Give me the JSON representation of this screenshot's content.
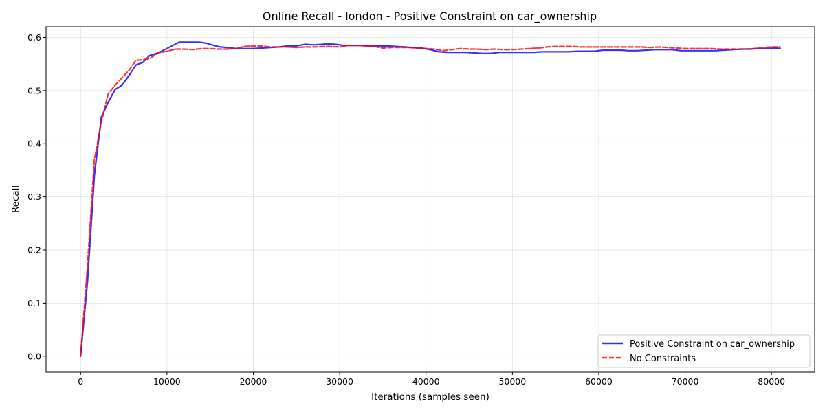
{
  "chart_data": {
    "type": "line",
    "title": "Online Recall - london - Positive Constraint on car_ownership",
    "xlabel": "Iterations (samples seen)",
    "ylabel": "Recall",
    "xlim": [
      -4000,
      85000
    ],
    "ylim": [
      -0.03,
      0.62
    ],
    "xticks": [
      0,
      10000,
      20000,
      30000,
      40000,
      50000,
      60000,
      70000,
      80000
    ],
    "yticks": [
      0.0,
      0.1,
      0.2,
      0.3,
      0.4,
      0.5,
      0.6
    ],
    "xtick_labels": [
      "0",
      "10000",
      "20000",
      "30000",
      "40000",
      "50000",
      "60000",
      "70000",
      "80000"
    ],
    "ytick_labels": [
      "0.0",
      "0.1",
      "0.2",
      "0.3",
      "0.4",
      "0.5",
      "0.6"
    ],
    "grid": true,
    "legend_position": "lower-right",
    "series": [
      {
        "name": "Positive Constraint on car_ownership",
        "color": "#0000ff",
        "style": "solid",
        "x": [
          0,
          800,
          1600,
          2400,
          3200,
          4000,
          4800,
          5600,
          6400,
          7200,
          8000,
          9000,
          10000,
          10800,
          11400,
          12200,
          13000,
          13800,
          14600,
          15400,
          16200,
          17000,
          18000,
          19000,
          20000,
          21000,
          22000,
          23000,
          24000,
          25000,
          26000,
          27000,
          28000,
          28500,
          29500,
          30500,
          31500,
          32500,
          33500,
          34500,
          35500,
          36500,
          37500,
          38500,
          39500,
          40500,
          41500,
          42500,
          43500,
          44500,
          45500,
          46500,
          47500,
          48500,
          49500,
          50500,
          51500,
          52500,
          53500,
          54500,
          55500,
          56500,
          57500,
          58500,
          59500,
          60500,
          61500,
          62500,
          63500,
          64500,
          65500,
          66500,
          67500,
          68500,
          69500,
          70500,
          71500,
          72500,
          73500,
          74500,
          75500,
          76500,
          77500,
          78500,
          79500,
          80500,
          81000
        ],
        "y": [
          0.0,
          0.14,
          0.34,
          0.45,
          0.478,
          0.502,
          0.51,
          0.528,
          0.548,
          0.553,
          0.566,
          0.571,
          0.579,
          0.586,
          0.591,
          0.591,
          0.591,
          0.591,
          0.589,
          0.585,
          0.582,
          0.581,
          0.579,
          0.579,
          0.579,
          0.58,
          0.581,
          0.582,
          0.584,
          0.584,
          0.587,
          0.586,
          0.587,
          0.588,
          0.587,
          0.585,
          0.585,
          0.585,
          0.584,
          0.584,
          0.584,
          0.583,
          0.582,
          0.581,
          0.58,
          0.577,
          0.573,
          0.572,
          0.572,
          0.572,
          0.571,
          0.57,
          0.57,
          0.572,
          0.572,
          0.572,
          0.572,
          0.572,
          0.573,
          0.573,
          0.573,
          0.573,
          0.574,
          0.574,
          0.574,
          0.576,
          0.576,
          0.576,
          0.575,
          0.575,
          0.576,
          0.577,
          0.577,
          0.577,
          0.575,
          0.575,
          0.575,
          0.575,
          0.575,
          0.576,
          0.577,
          0.578,
          0.578,
          0.579,
          0.579,
          0.58,
          0.579
        ]
      },
      {
        "name": "No Constraints",
        "color": "#ff0000",
        "style": "dashed",
        "x": [
          0,
          800,
          1600,
          2400,
          3200,
          4000,
          4800,
          5600,
          6400,
          7200,
          8000,
          9000,
          10000,
          11000,
          12000,
          13000,
          14000,
          15000,
          16000,
          17000,
          18000,
          19000,
          20000,
          21000,
          22000,
          23000,
          24000,
          25000,
          26000,
          27000,
          28000,
          29000,
          30000,
          31000,
          32000,
          33000,
          34000,
          35000,
          36000,
          37000,
          38000,
          39000,
          40000,
          41000,
          42000,
          43000,
          44000,
          45000,
          46000,
          47000,
          48000,
          49000,
          50000,
          51000,
          52000,
          53000,
          54000,
          55000,
          56000,
          57000,
          58000,
          59000,
          60000,
          61000,
          62000,
          63000,
          64000,
          65000,
          66000,
          67000,
          68000,
          69000,
          70000,
          71000,
          72000,
          73000,
          74000,
          75000,
          76000,
          77000,
          78000,
          79000,
          80000,
          81000
        ],
        "y": [
          0.0,
          0.17,
          0.37,
          0.44,
          0.494,
          0.51,
          0.524,
          0.538,
          0.557,
          0.558,
          0.56,
          0.571,
          0.574,
          0.578,
          0.578,
          0.577,
          0.579,
          0.579,
          0.578,
          0.578,
          0.579,
          0.583,
          0.584,
          0.584,
          0.582,
          0.582,
          0.582,
          0.581,
          0.582,
          0.582,
          0.583,
          0.583,
          0.582,
          0.585,
          0.585,
          0.584,
          0.583,
          0.58,
          0.581,
          0.581,
          0.581,
          0.58,
          0.579,
          0.578,
          0.575,
          0.577,
          0.579,
          0.578,
          0.578,
          0.577,
          0.578,
          0.577,
          0.577,
          0.578,
          0.579,
          0.58,
          0.582,
          0.583,
          0.583,
          0.583,
          0.582,
          0.582,
          0.582,
          0.582,
          0.582,
          0.582,
          0.582,
          0.582,
          0.581,
          0.582,
          0.581,
          0.58,
          0.579,
          0.579,
          0.579,
          0.579,
          0.578,
          0.578,
          0.578,
          0.578,
          0.579,
          0.581,
          0.582,
          0.582
        ]
      }
    ]
  }
}
